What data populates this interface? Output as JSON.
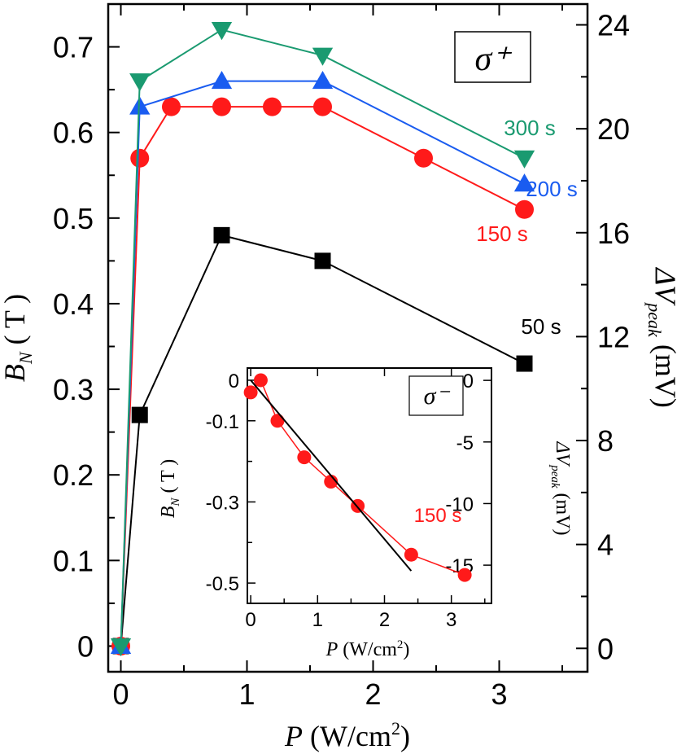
{
  "chart_data": [
    {
      "type": "line",
      "x_axis": {
        "label_var": "P",
        "label_unit": "(W/cm",
        "label_sup": "2",
        "label_close": ")",
        "range": [
          -0.1,
          3.7
        ],
        "ticks": [
          "0",
          "1",
          "2",
          "3"
        ]
      },
      "y_axis_left": {
        "label_var": "B",
        "label_sub": "N",
        "label_unit": "( T )",
        "range": [
          -0.03,
          0.75
        ],
        "ticks": [
          "0",
          "0.1",
          "0.2",
          "0.3",
          "0.4",
          "0.5",
          "0.6",
          "0.7"
        ]
      },
      "y_axis_right": {
        "label_var": "ΔV",
        "label_sub": "peak",
        "label_unit": "(mV)",
        "range": [
          -0.9,
          24.8
        ],
        "ticks": [
          "0",
          "4",
          "8",
          "12",
          "16",
          "20",
          "24"
        ]
      },
      "legend_box": "σ⁺",
      "series": [
        {
          "name": "50 s",
          "color": "#000000",
          "marker": "square",
          "x": [
            0,
            0.15,
            0.8,
            1.6,
            3.2
          ],
          "y": [
            0,
            0.27,
            0.48,
            0.45,
            0.33
          ]
        },
        {
          "name": "150 s",
          "color": "#ff1a1a",
          "marker": "circle",
          "x": [
            0,
            0.15,
            0.4,
            0.8,
            1.2,
            1.6,
            2.4,
            3.2
          ],
          "y": [
            0,
            0.57,
            0.63,
            0.63,
            0.63,
            0.63,
            0.57,
            0.51
          ]
        },
        {
          "name": "200 s",
          "color": "#1a5cf0",
          "marker": "triangle-up",
          "x": [
            0,
            0.15,
            0.8,
            1.6,
            3.2
          ],
          "y": [
            0,
            0.63,
            0.66,
            0.66,
            0.54
          ]
        },
        {
          "name": "300 s",
          "color": "#1a9a70",
          "marker": "triangle-down",
          "x": [
            0,
            0.15,
            0.8,
            1.6,
            3.2
          ],
          "y": [
            0,
            0.66,
            0.72,
            0.69,
            0.57
          ]
        }
      ]
    },
    {
      "type": "line",
      "inset": true,
      "x_axis": {
        "label_var": "P",
        "label_unit": "(W/cm",
        "label_sup": "2",
        "label_close": ")",
        "range": [
          -0.05,
          3.6
        ],
        "ticks": [
          "0",
          "1",
          "2",
          "3"
        ]
      },
      "y_axis_left": {
        "label_var": "B",
        "label_sub": "N",
        "label_unit": "( T )",
        "range": [
          -0.55,
          0.03
        ],
        "ticks": [
          "0",
          "-0.1",
          "-0.3",
          "-0.5"
        ]
      },
      "y_axis_right": {
        "label_var": "ΔV",
        "label_sub": "peak",
        "label_unit": "(mV)",
        "range": [
          -18.1,
          1.0
        ],
        "ticks": [
          "0",
          "-5",
          "-10",
          "-15"
        ]
      },
      "legend_box": "σ⁻",
      "series": [
        {
          "name": "150 s",
          "color": "#ff1a1a",
          "marker": "circle",
          "x": [
            0,
            0.15,
            0.4,
            0.8,
            1.2,
            1.6,
            2.4,
            3.2
          ],
          "y": [
            -0.03,
            0,
            -0.1,
            -0.19,
            -0.25,
            -0.31,
            -0.43,
            -0.48
          ]
        }
      ],
      "fit_line": {
        "color": "#000000",
        "x": [
          0,
          2.4
        ],
        "y": [
          0,
          -0.47
        ]
      }
    }
  ]
}
